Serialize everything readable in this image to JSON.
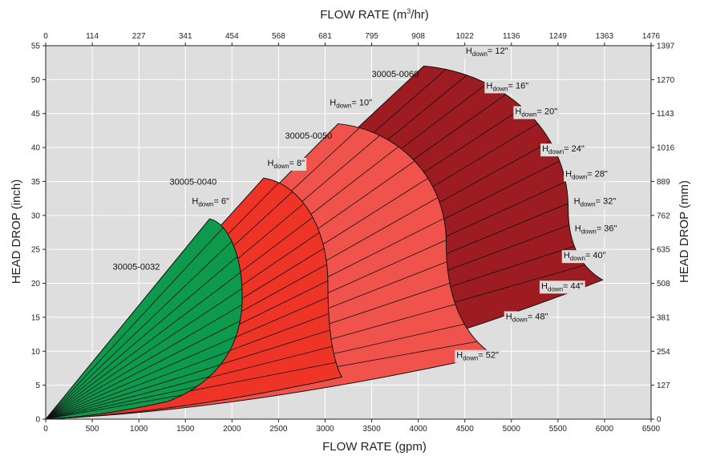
{
  "chart_data": {
    "type": "area",
    "title": "",
    "xlabel": "FLOW RATE (gpm)",
    "x2label_main": "FLOW RATE (m",
    "x2label_sup": "3",
    "x2label_end": "/hr)",
    "ylabel": "HEAD DROP (inch)",
    "y2label": "HEAD DROP (mm)",
    "xlim": [
      0,
      6500
    ],
    "ylim": [
      0,
      55
    ],
    "grid": true,
    "x_ticks": [
      "0",
      "500",
      "1000",
      "1500",
      "2000",
      "2500",
      "3000",
      "3500",
      "4000",
      "4500",
      "5000",
      "5500",
      "6000",
      "6500"
    ],
    "x2_ticks": [
      "0",
      "114",
      "227",
      "341",
      "454",
      "568",
      "681",
      "795",
      "908",
      "1022",
      "1136",
      "1249",
      "1363",
      "1476"
    ],
    "y_ticks": [
      "0",
      "5",
      "10",
      "15",
      "20",
      "25",
      "30",
      "35",
      "40",
      "45",
      "50",
      "55"
    ],
    "y2_ticks": [
      "0",
      "127",
      "254",
      "381",
      "508",
      "635",
      "762",
      "889",
      "1016",
      "1143",
      "1270",
      "1397"
    ],
    "colors": {
      "30005-0032": "#0e9a4c",
      "30005-0040": "#ee3427",
      "30005-0050": "#f0534b",
      "30005-0060": "#9d1c22",
      "background": "#dedede",
      "grid": "#ffffff"
    },
    "series": [
      {
        "name": "30005-0032",
        "apex": {
          "x": 1760,
          "y": 29.5
        },
        "max_flow": {
          "x": 2110,
          "y": 18
        },
        "end": {
          "x": 1310,
          "y": 2.6
        }
      },
      {
        "name": "30005-0040",
        "apex": {
          "x": 2340,
          "y": 35.5
        },
        "max_flow": {
          "x": 3030,
          "y": 20
        },
        "end": {
          "x": 3180,
          "y": 6.2
        }
      },
      {
        "name": "30005-0050",
        "apex": {
          "x": 3140,
          "y": 43.5
        },
        "max_flow": {
          "x": 4300,
          "y": 26
        },
        "end": {
          "x": 4800,
          "y": 9.5
        }
      },
      {
        "name": "30005-0060",
        "apex": {
          "x": 4060,
          "y": 52
        },
        "max_flow": {
          "x": 5610,
          "y": 31
        },
        "end": {
          "x": 5980,
          "y": 20.5
        }
      }
    ],
    "annotations": [
      {
        "text": "30005-0032",
        "x": 720,
        "y": 22
      },
      {
        "text": "30005-0040",
        "x": 1330,
        "y": 34.5
      },
      {
        "text": "30005-0050",
        "x": 2570,
        "y": 41.3
      },
      {
        "text": "30005-0060",
        "x": 3500,
        "y": 50.4
      }
    ],
    "hdown_labels": [
      {
        "prefix": "H",
        "sub": "down",
        "value": "= 6\"",
        "x": 1570,
        "y": 31.7
      },
      {
        "prefix": "H",
        "sub": "down",
        "value": "= 8\"",
        "x": 2380,
        "y": 37.3
      },
      {
        "prefix": "H",
        "sub": "down",
        "value": "= 10\"",
        "x": 3050,
        "y": 46.2
      },
      {
        "prefix": "H",
        "sub": "down",
        "value": "= 12\"",
        "x": 4510,
        "y": 53.8
      },
      {
        "prefix": "H",
        "sub": "down",
        "value": "= 16\"",
        "x": 4730,
        "y": 48.7
      },
      {
        "prefix": "H",
        "sub": "down",
        "value": "= 20\"",
        "x": 5040,
        "y": 44.9
      },
      {
        "prefix": "H",
        "sub": "down",
        "value": "= 24\"",
        "x": 5330,
        "y": 39.4
      },
      {
        "prefix": "H",
        "sub": "down",
        "value": "= 28\"",
        "x": 5580,
        "y": 35.7
      },
      {
        "prefix": "H",
        "sub": "down",
        "value": "= 32\"",
        "x": 5670,
        "y": 31.7
      },
      {
        "prefix": "H",
        "sub": "down",
        "value": "= 36\"",
        "x": 5680,
        "y": 27.7
      },
      {
        "prefix": "H",
        "sub": "down",
        "value": "= 40\"",
        "x": 5560,
        "y": 23.7
      },
      {
        "prefix": "H",
        "sub": "down",
        "value": "= 44\"",
        "x": 5320,
        "y": 19.2
      },
      {
        "prefix": "H",
        "sub": "down",
        "value": "= 48\"",
        "x": 4940,
        "y": 14.7
      },
      {
        "prefix": "H",
        "sub": "down",
        "value": "= 52\"",
        "x": 4410,
        "y": 9.0
      }
    ]
  }
}
